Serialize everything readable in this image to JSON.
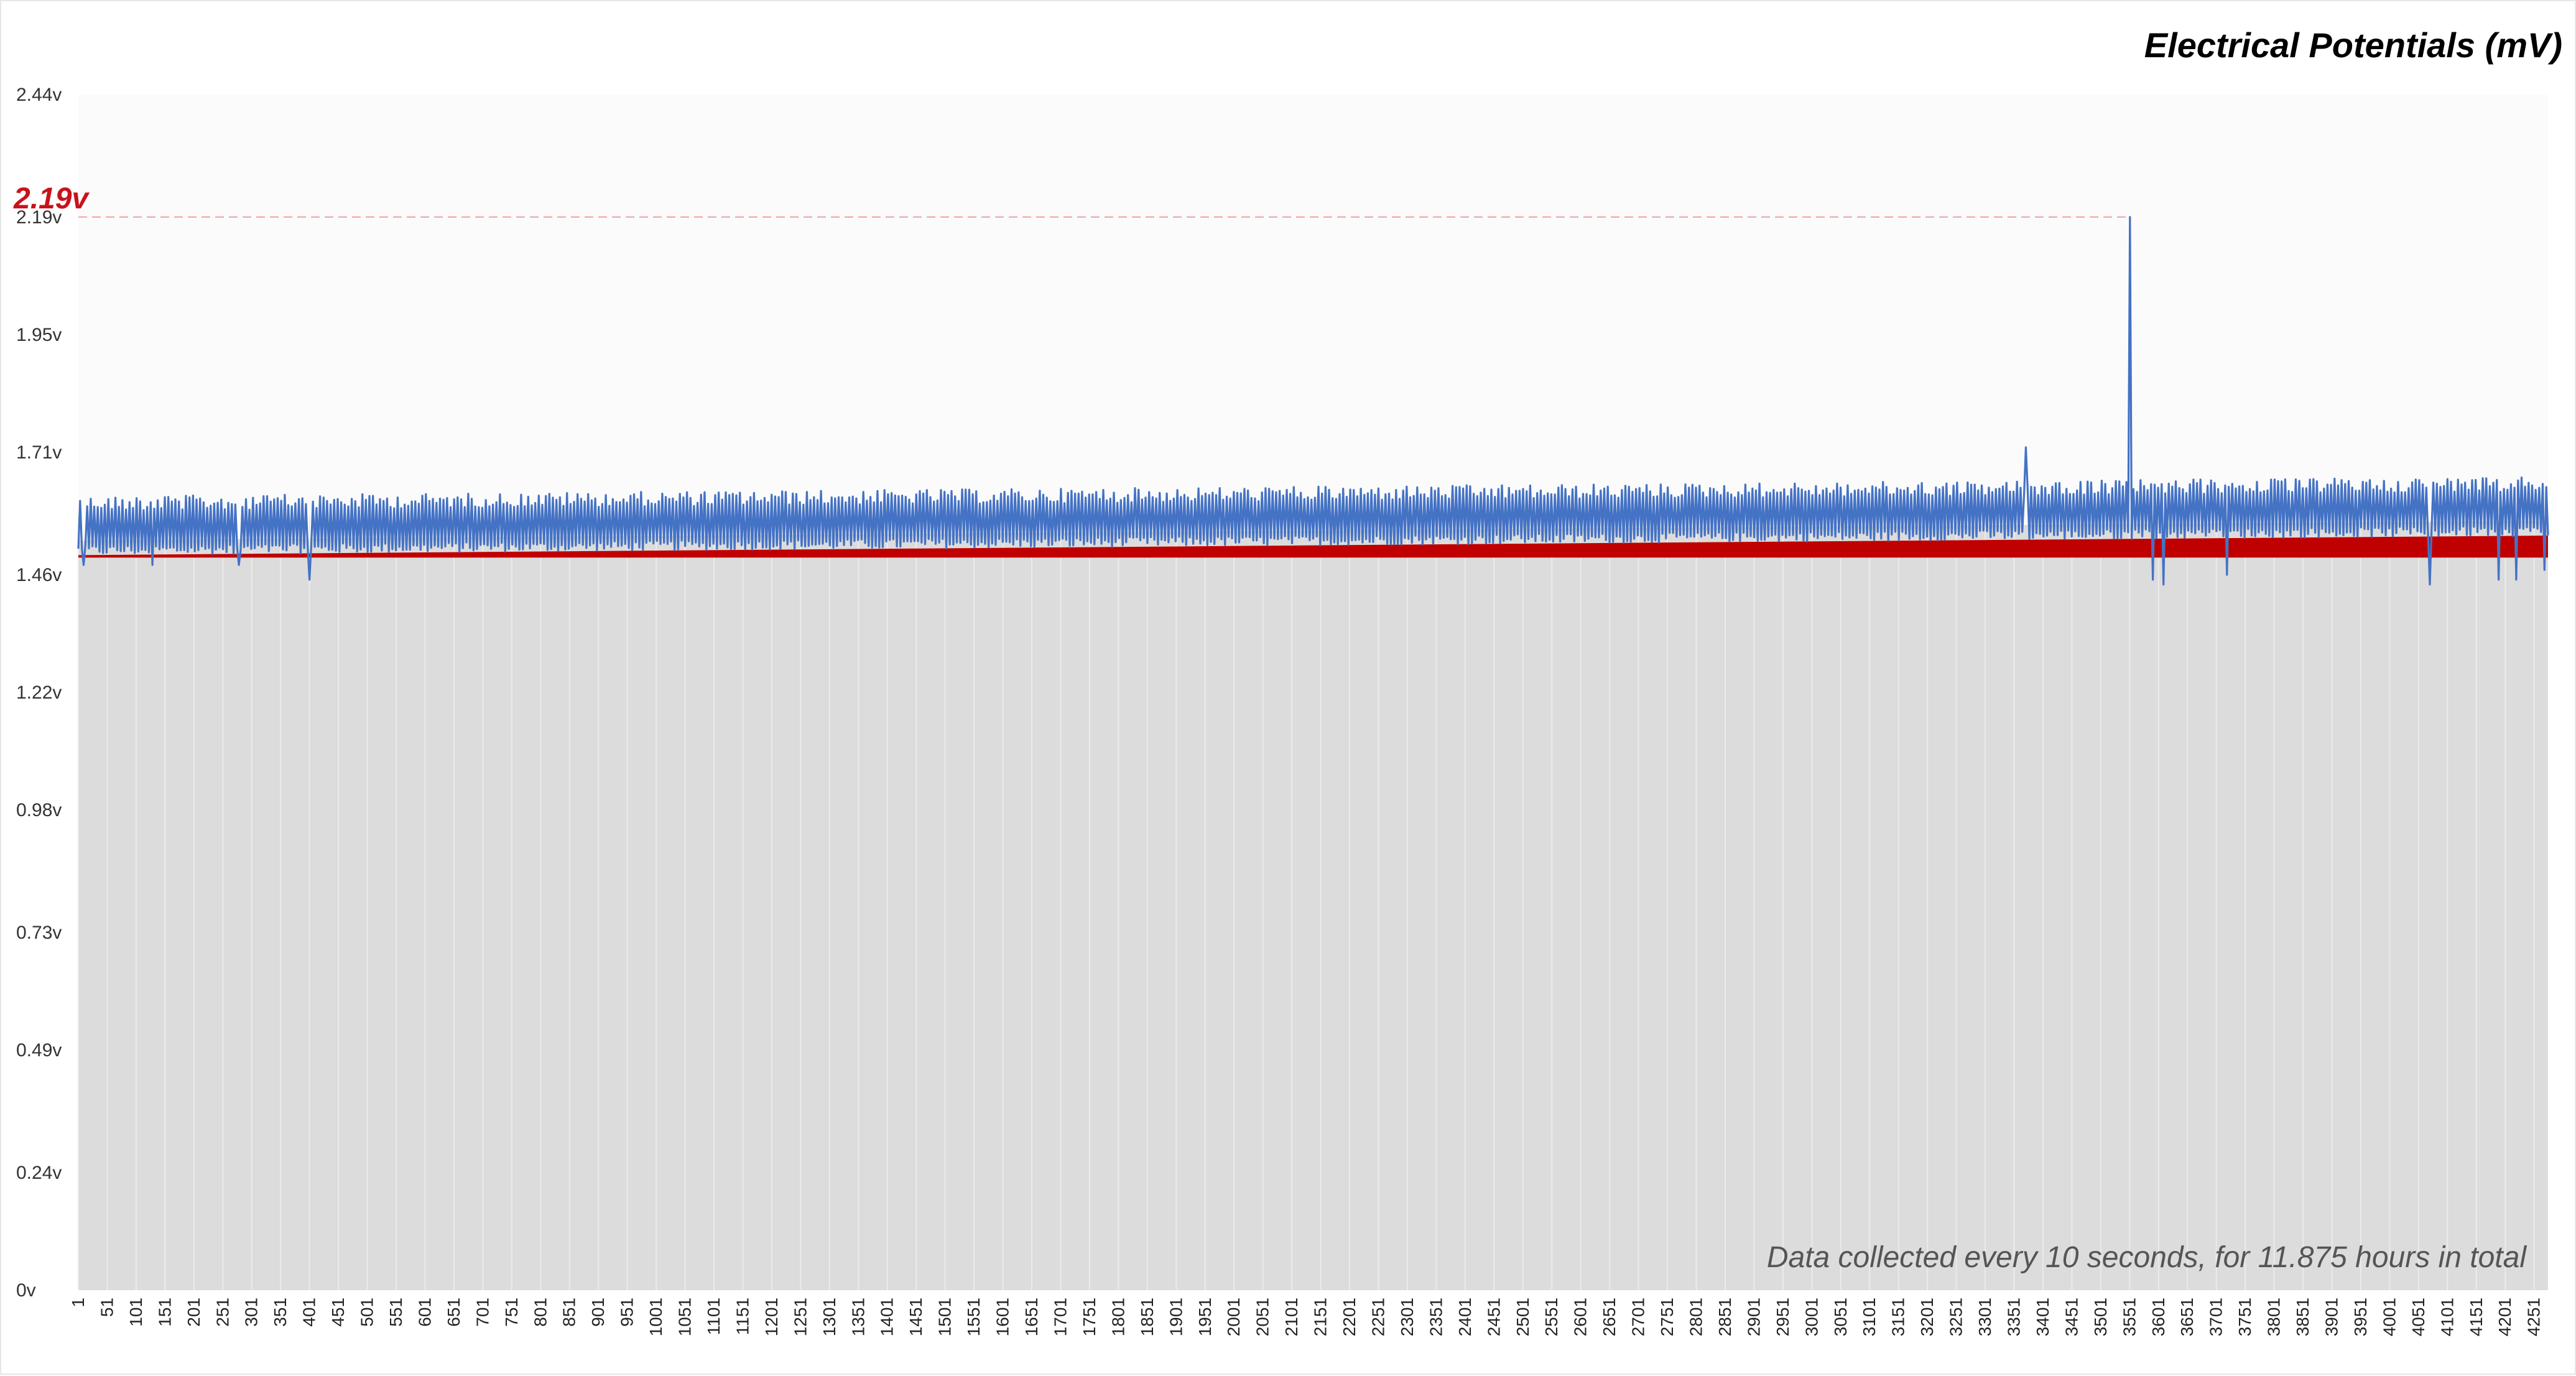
{
  "chart_data": {
    "type": "line",
    "title": "Electrical Potentials (mV)",
    "ylim": [
      0,
      2.44
    ],
    "ytick_labels": [
      "0v",
      "0.24v",
      "0.49v",
      "0.73v",
      "0.98v",
      "1.22v",
      "1.46v",
      "1.71v",
      "1.95v",
      "2.19v",
      "2.44v"
    ],
    "ytick_values": [
      0,
      0.24,
      0.49,
      0.73,
      0.98,
      1.22,
      1.46,
      1.71,
      1.95,
      2.19,
      2.44
    ],
    "x_range": [
      1,
      4275
    ],
    "x_step": 50,
    "xtick_first": 1,
    "xtick_last": 4251,
    "grid": true,
    "peak": {
      "x": 3551,
      "y": 2.19,
      "label": "2.19v"
    },
    "annotation": "Data collected every 10 seconds, for 11.875 hours in total",
    "series": [
      {
        "color": "#4472c4",
        "baseline_start": 1.5,
        "baseline_end": 1.54,
        "upper_start": 1.62,
        "upper_end": 1.66,
        "outliers": [
          {
            "x": 10,
            "y": 1.48
          },
          {
            "x": 130,
            "y": 1.48
          },
          {
            "x": 280,
            "y": 1.48
          },
          {
            "x": 400,
            "y": 1.45
          },
          {
            "x": 3370,
            "y": 1.72
          },
          {
            "x": 3551,
            "y": 2.19
          },
          {
            "x": 3590,
            "y": 1.45
          },
          {
            "x": 3610,
            "y": 1.44
          },
          {
            "x": 3720,
            "y": 1.46
          },
          {
            "x": 4070,
            "y": 1.44
          },
          {
            "x": 4190,
            "y": 1.45
          },
          {
            "x": 4220,
            "y": 1.45
          },
          {
            "x": 4270,
            "y": 1.47
          }
        ]
      },
      {
        "color": "#c00000",
        "band_start_low": 1.495,
        "band_start_high": 1.5,
        "band_end_low": 1.495,
        "band_end_high": 1.54
      }
    ]
  }
}
